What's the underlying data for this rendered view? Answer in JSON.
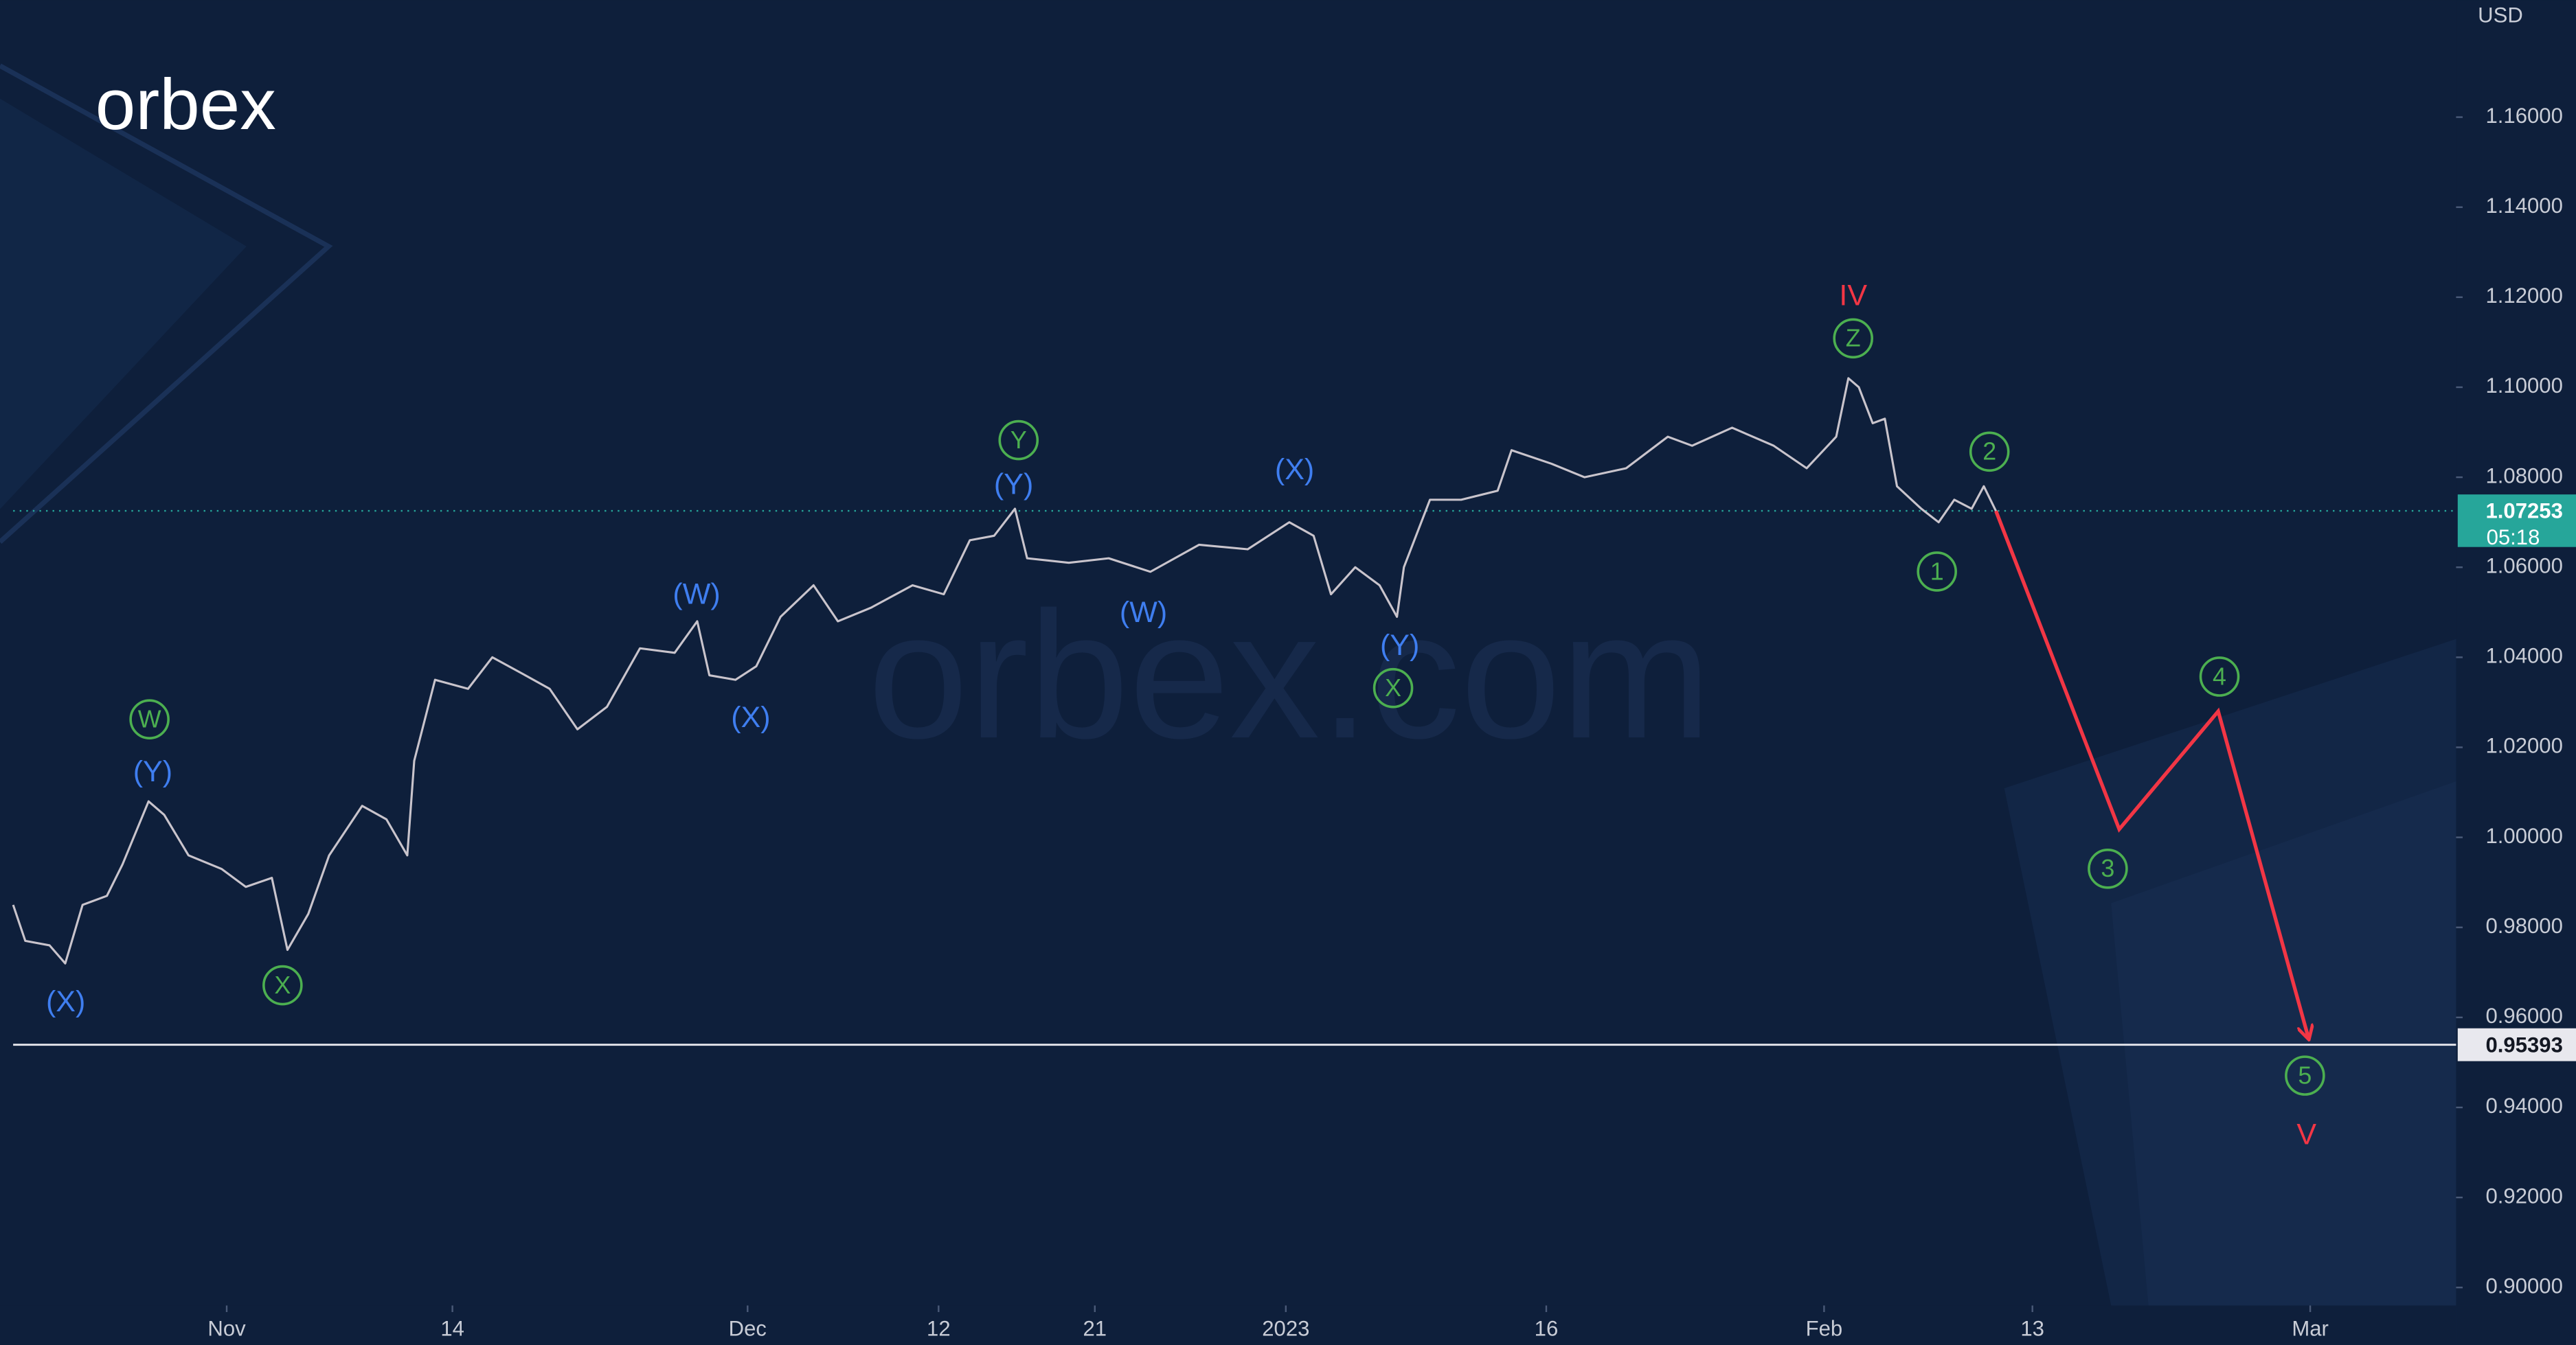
{
  "chart_data": {
    "type": "line",
    "logo": "orbex",
    "watermark": "orbex.com",
    "currency": "USD",
    "xlim": [
      -12.3,
      128.4
    ],
    "xticks": [
      {
        "value": 0,
        "label": "Nov"
      },
      {
        "value": 13,
        "label": "14"
      },
      {
        "value": 30,
        "label": "Dec"
      },
      {
        "value": 41,
        "label": "12"
      },
      {
        "value": 50,
        "label": "21"
      },
      {
        "value": 61,
        "label": "2023"
      },
      {
        "value": 76,
        "label": "16"
      },
      {
        "value": 92,
        "label": "Feb"
      },
      {
        "value": 104,
        "label": "13"
      },
      {
        "value": 120,
        "label": "Mar"
      }
    ],
    "ylim": [
      0.896,
      1.186
    ],
    "yticks": [
      {
        "value": 0.9,
        "label": "0.90000"
      },
      {
        "value": 0.92,
        "label": "0.92000"
      },
      {
        "value": 0.94,
        "label": "0.94000"
      },
      {
        "value": 0.96,
        "label": "0.96000"
      },
      {
        "value": 0.98,
        "label": "0.98000"
      },
      {
        "value": 1.0,
        "label": "1.00000"
      },
      {
        "value": 1.02,
        "label": "1.02000"
      },
      {
        "value": 1.04,
        "label": "1.04000"
      },
      {
        "value": 1.06,
        "label": "1.06000"
      },
      {
        "value": 1.08,
        "label": "1.08000"
      },
      {
        "value": 1.1,
        "label": "1.10000"
      },
      {
        "value": 1.12,
        "label": "1.12000"
      },
      {
        "value": 1.14,
        "label": "1.14000"
      },
      {
        "value": 1.16,
        "label": "1.16000"
      }
    ],
    "series": [
      {
        "color": "#c9c4cc",
        "style": "price",
        "x": [
          -12.3,
          -11.6,
          -10.2,
          -9.3,
          -8.3,
          -6.9,
          -6,
          -4.5,
          -3.6,
          -2.2,
          -0.3,
          1.1,
          2.6,
          3.5,
          4.7,
          5.9,
          7.8,
          9.2,
          10.4,
          10.8,
          12,
          13.9,
          15.3,
          17.2,
          18.6,
          20.2,
          21.9,
          23.8,
          25.8,
          27.1,
          27.8,
          29.3,
          30.5,
          31.9,
          33.8,
          35.2,
          37.1,
          39.5,
          41.3,
          42.8,
          44.2,
          45.4,
          46.1,
          48.5,
          50.8,
          53.2,
          56,
          58.8,
          61.2,
          62.6,
          63.6,
          65,
          66.4,
          67.4,
          67.8,
          69.3,
          71.1,
          73.2,
          74,
          76.3,
          78.2,
          80.6,
          83,
          84.4,
          86.7,
          89.1,
          91,
          92.7,
          93.4,
          94,
          94.8,
          95.5,
          96.2,
          97.6,
          98.6,
          99.5,
          100.5,
          101.2,
          101.9
        ],
        "values": [
          0.985,
          0.977,
          0.976,
          0.972,
          0.985,
          0.987,
          0.994,
          1.008,
          1.005,
          0.996,
          0.993,
          0.989,
          0.991,
          0.975,
          0.983,
          0.996,
          1.007,
          1.004,
          0.996,
          1.017,
          1.035,
          1.033,
          1.04,
          1.036,
          1.033,
          1.024,
          1.029,
          1.042,
          1.041,
          1.048,
          1.036,
          1.035,
          1.038,
          1.049,
          1.056,
          1.048,
          1.051,
          1.056,
          1.054,
          1.066,
          1.067,
          1.073,
          1.062,
          1.061,
          1.062,
          1.059,
          1.065,
          1.064,
          1.07,
          1.067,
          1.054,
          1.06,
          1.056,
          1.049,
          1.06,
          1.075,
          1.075,
          1.077,
          1.086,
          1.083,
          1.08,
          1.082,
          1.089,
          1.087,
          1.091,
          1.087,
          1.082,
          1.089,
          1.102,
          1.1,
          1.092,
          1.093,
          1.078,
          1.073,
          1.07,
          1.075,
          1.073,
          1.078,
          1.0725
        ]
      },
      {
        "color": "#f23645",
        "style": "arrow",
        "x": [
          101.9,
          109,
          114.7,
          119.9
        ],
        "values": [
          1.0725,
          1.0018,
          1.028,
          0.9554
        ]
      }
    ],
    "hlines": [
      {
        "value": 1.07253,
        "timer": "05:18",
        "color": "#26a69a",
        "style": "dotted"
      },
      {
        "value": 0.95393,
        "color": "#e8e8ee",
        "style": "solid"
      }
    ],
    "annotations": [
      {
        "text": "(X)",
        "color": "#3f7ef0",
        "circled": false
      },
      {
        "text": "W",
        "color": "#4caf50",
        "circled": true
      },
      {
        "text": "(Y)",
        "color": "#3f7ef0",
        "circled": false
      },
      {
        "text": "X",
        "color": "#4caf50",
        "circled": true
      },
      {
        "text": "(W)",
        "color": "#3f7ef0",
        "circled": false
      },
      {
        "text": "(X)",
        "color": "#3f7ef0",
        "circled": false
      },
      {
        "text": "Y",
        "color": "#4caf50",
        "circled": true
      },
      {
        "text": "(Y)",
        "color": "#3f7ef0",
        "circled": false
      },
      {
        "text": "(W)",
        "color": "#3f7ef0",
        "circled": false
      },
      {
        "text": "(X)",
        "color": "#3f7ef0",
        "circled": false
      },
      {
        "text": "(Y)",
        "color": "#3f7ef0",
        "circled": false
      },
      {
        "text": "X",
        "color": "#4caf50",
        "circled": true
      },
      {
        "text": "IV",
        "color": "#f23645",
        "circled": false
      },
      {
        "text": "Z",
        "color": "#4caf50",
        "circled": true
      },
      {
        "text": "2",
        "color": "#4caf50",
        "circled": true
      },
      {
        "text": "1",
        "color": "#4caf50",
        "circled": true
      },
      {
        "text": "4",
        "color": "#4caf50",
        "circled": true
      },
      {
        "text": "3",
        "color": "#4caf50",
        "circled": true
      },
      {
        "text": "5",
        "color": "#4caf50",
        "circled": true
      },
      {
        "text": "V",
        "color": "#f23645",
        "circled": false
      }
    ]
  }
}
